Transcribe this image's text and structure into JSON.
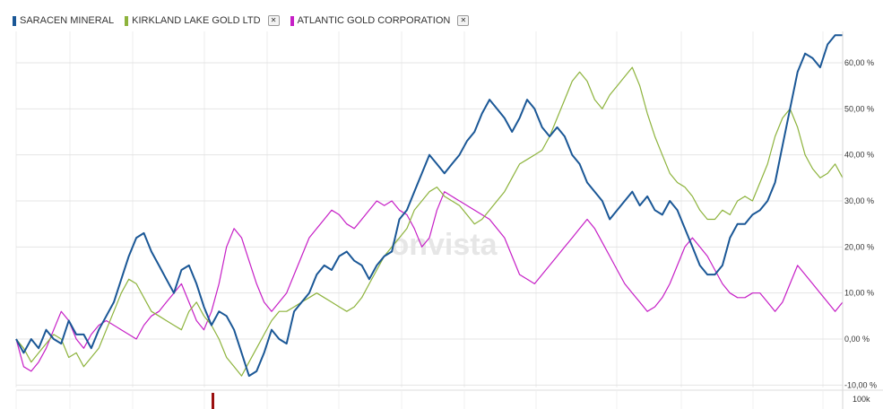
{
  "chart_data": {
    "type": "line",
    "watermark": "onvista",
    "ylim": [
      -10,
      66
    ],
    "yticks": [
      -10,
      0,
      10,
      20,
      30,
      40,
      50,
      60
    ],
    "ytick_labels": [
      "-10,00 %",
      "0,00 %",
      "10,00 %",
      "20,00 %",
      "30,00 %",
      "40,00 %",
      "50,00 %",
      "60,00 %"
    ],
    "volume_label": "100k",
    "grid": true,
    "legend_position": "top-left",
    "series": [
      {
        "name": "SARACEN MINERAL",
        "color": "#1a5796",
        "closable": false,
        "values": [
          0,
          -3,
          0,
          -2,
          2,
          0,
          -1,
          4,
          1,
          1,
          -2,
          2,
          5,
          8,
          13,
          18,
          22,
          23,
          19,
          16,
          13,
          10,
          15,
          16,
          12,
          7,
          3,
          6,
          5,
          2,
          -3,
          -8,
          -7,
          -3,
          2,
          0,
          -1,
          6,
          8,
          10,
          14,
          16,
          15,
          18,
          19,
          17,
          16,
          13,
          16,
          18,
          19,
          26,
          28,
          32,
          36,
          40,
          38,
          36,
          38,
          40,
          43,
          45,
          49,
          52,
          50,
          48,
          45,
          48,
          52,
          50,
          46,
          44,
          46,
          44,
          40,
          38,
          34,
          32,
          30,
          26,
          28,
          30,
          32,
          29,
          31,
          28,
          27,
          30,
          28,
          24,
          20,
          16,
          14,
          14,
          16,
          22,
          25,
          25,
          27,
          28,
          30,
          34,
          42,
          50,
          58,
          62,
          61,
          59,
          64,
          66,
          66
        ]
      },
      {
        "name": "KIRKLAND LAKE GOLD LTD",
        "color": "#8db33c",
        "closable": true,
        "values": [
          0,
          -2,
          -5,
          -3,
          -1,
          1,
          0,
          -4,
          -3,
          -6,
          -4,
          -2,
          2,
          6,
          10,
          13,
          12,
          9,
          6,
          5,
          4,
          3,
          2,
          6,
          8,
          5,
          3,
          0,
          -4,
          -6,
          -8,
          -5,
          -2,
          1,
          4,
          6,
          6,
          7,
          8,
          9,
          10,
          9,
          8,
          7,
          6,
          7,
          9,
          12,
          15,
          18,
          20,
          22,
          24,
          28,
          30,
          32,
          33,
          31,
          30,
          29,
          27,
          25,
          26,
          28,
          30,
          32,
          35,
          38,
          39,
          40,
          41,
          44,
          48,
          52,
          56,
          58,
          56,
          52,
          50,
          53,
          55,
          57,
          59,
          55,
          49,
          44,
          40,
          36,
          34,
          33,
          31,
          28,
          26,
          26,
          28,
          27,
          30,
          31,
          30,
          34,
          38,
          44,
          48,
          50,
          46,
          40,
          37,
          35,
          36,
          38,
          35
        ]
      },
      {
        "name": "ATLANTIC GOLD CORPORATION",
        "color": "#c61fc6",
        "closable": true,
        "values": [
          0,
          -6,
          -7,
          -5,
          -2,
          2,
          6,
          4,
          0,
          -2,
          1,
          3,
          4,
          3,
          2,
          1,
          0,
          3,
          5,
          6,
          8,
          10,
          12,
          8,
          4,
          2,
          6,
          12,
          20,
          24,
          22,
          17,
          12,
          8,
          6,
          8,
          10,
          14,
          18,
          22,
          24,
          26,
          28,
          27,
          25,
          24,
          26,
          28,
          30,
          29,
          30,
          28,
          27,
          24,
          20,
          22,
          28,
          32,
          31,
          30,
          29,
          28,
          27,
          26,
          24,
          22,
          18,
          14,
          13,
          12,
          14,
          16,
          18,
          20,
          22,
          24,
          26,
          24,
          21,
          18,
          15,
          12,
          10,
          8,
          6,
          7,
          9,
          12,
          16,
          20,
          22,
          20,
          18,
          15,
          12,
          10,
          9,
          9,
          10,
          10,
          8,
          6,
          8,
          12,
          16,
          14,
          12,
          10,
          8,
          6,
          8
        ]
      }
    ]
  }
}
